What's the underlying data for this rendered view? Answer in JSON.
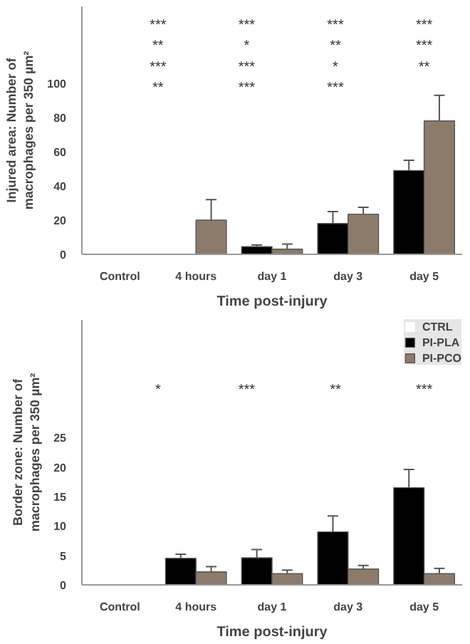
{
  "chart_data": [
    {
      "type": "bar",
      "xlabel": "Time post-injury",
      "ylabel": "Injured area: Number of\nmacrophages per 350 µm²",
      "categories": [
        "Control",
        "4 hours",
        "day 1",
        "day 3",
        "day 5"
      ],
      "series": [
        {
          "color": "#ffffff",
          "values": [
            0,
            null,
            null,
            null,
            null
          ]
        },
        {
          "color": "#000000",
          "values": [
            null,
            0,
            4.5,
            18,
            49
          ],
          "errors": [
            null,
            null,
            [
              4.5,
              5.5
            ],
            [
              18,
              25
            ],
            [
              49,
              55
            ]
          ]
        },
        {
          "color": "#8c7b6b",
          "values": [
            null,
            20,
            3,
            23.5,
            78
          ],
          "errors": [
            null,
            [
              20,
              32
            ],
            [
              3,
              6
            ],
            [
              23.5,
              27.5
            ],
            [
              78,
              93
            ]
          ]
        }
      ],
      "ylim": [
        0,
        145
      ],
      "yticks": [
        0,
        20,
        40,
        60,
        80,
        100
      ],
      "grid": false,
      "annotations": [
        "***",
        "***",
        "***",
        "***",
        "**",
        "*",
        "**",
        "***",
        "***",
        "***",
        "*",
        "**",
        "**",
        "***",
        "***"
      ]
    },
    {
      "type": "bar",
      "xlabel": "Time post-injury",
      "ylabel": "Border zone: Number of\nmacrophages per 350 µm²",
      "categories": [
        "Control",
        "4 hours",
        "day 1",
        "day 3",
        "day 5"
      ],
      "series": [
        {
          "name": "CTRL",
          "color": "#ffffff",
          "values": [
            0,
            null,
            null,
            null,
            null
          ]
        },
        {
          "name": "PI-PLA",
          "color": "#000000",
          "values": [
            null,
            4.5,
            4.6,
            9,
            16.5
          ],
          "errors": [
            null,
            [
              4.5,
              5.2
            ],
            [
              4.6,
              6
            ],
            [
              9,
              11.7
            ],
            [
              16.5,
              19.6
            ]
          ]
        },
        {
          "name": "PI-PCO",
          "color": "#8c7b6b",
          "values": [
            null,
            2.2,
            1.9,
            2.7,
            1.9
          ],
          "errors": [
            null,
            [
              2.2,
              3.1
            ],
            [
              1.9,
              2.5
            ],
            [
              2.7,
              3.3
            ],
            [
              1.9,
              2.8
            ]
          ]
        }
      ],
      "ylim": [
        0,
        45
      ],
      "yticks": [
        0,
        5,
        10,
        15,
        20,
        25
      ],
      "grid": false,
      "legend": "top right",
      "annotations": [
        "*",
        "***",
        "**",
        "***"
      ]
    }
  ]
}
